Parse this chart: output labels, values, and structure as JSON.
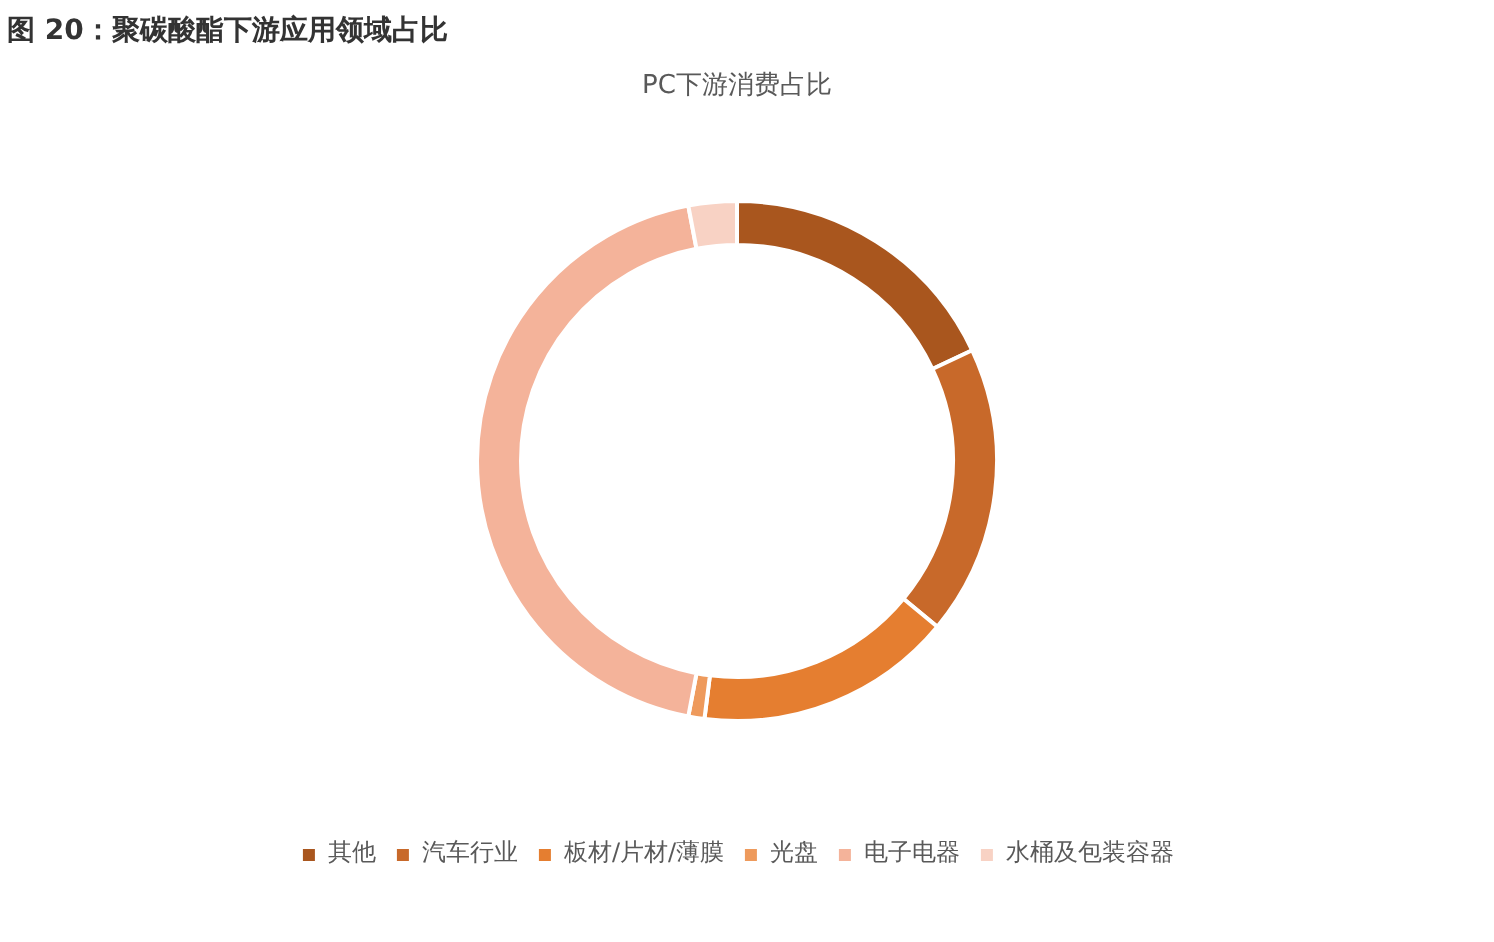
{
  "chart_data": {
    "type": "donut",
    "title": "图 20：聚碳酸酯下游应用领域占比",
    "subtitle": "PC下游消费占比",
    "categories": [
      "其他",
      "汽车行业",
      "板材/片材/薄膜",
      "光盘",
      "电子电器",
      "水桶及包装容器"
    ],
    "values": [
      18,
      18,
      16,
      1,
      44,
      3
    ],
    "colors": [
      "#a9561e",
      "#c8692a",
      "#e57e30",
      "#ee9a5c",
      "#f4b39a",
      "#f8d2c4"
    ],
    "legend": "bottom"
  }
}
